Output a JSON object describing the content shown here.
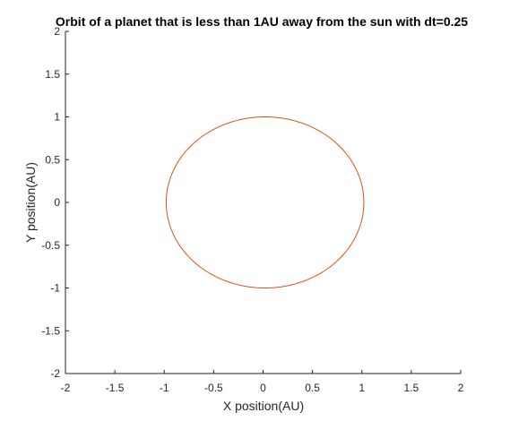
{
  "chart_data": {
    "type": "line",
    "title": "Orbit of a planet that is less than 1AU away from the sun with dt=0.25",
    "xlabel": "X position(AU)",
    "ylabel": "Y position(AU)",
    "xlim": [
      -2,
      2
    ],
    "ylim": [
      -2,
      2
    ],
    "x_ticks": [
      "-2",
      "-1.5",
      "-1",
      "-0.5",
      "0",
      "0.5",
      "1",
      "1.5",
      "2"
    ],
    "y_ticks": [
      "-2",
      "-1.5",
      "-1",
      "-0.5",
      "0",
      "0.5",
      "1",
      "1.5",
      "2"
    ],
    "grid": false,
    "series": [
      {
        "color": "#d95319",
        "shape": "ellipse",
        "center": [
          0.02,
          0.0
        ],
        "x_extent": [
          -0.99,
          1.01
        ],
        "y_extent": [
          -1.0,
          1.0
        ],
        "points": [
          [
            1.01,
            0.0
          ],
          [
            0.96,
            0.31
          ],
          [
            0.83,
            0.59
          ],
          [
            0.61,
            0.81
          ],
          [
            0.33,
            0.95
          ],
          [
            0.02,
            1.0
          ],
          [
            -0.29,
            0.95
          ],
          [
            -0.57,
            0.81
          ],
          [
            -0.79,
            0.59
          ],
          [
            -0.93,
            0.31
          ],
          [
            -0.99,
            0.0
          ],
          [
            -0.93,
            -0.31
          ],
          [
            -0.79,
            -0.59
          ],
          [
            -0.57,
            -0.81
          ],
          [
            -0.29,
            -0.95
          ],
          [
            0.02,
            -1.0
          ],
          [
            0.33,
            -0.95
          ],
          [
            0.61,
            -0.81
          ],
          [
            0.83,
            -0.59
          ],
          [
            0.96,
            -0.31
          ],
          [
            1.01,
            0.0
          ]
        ]
      }
    ]
  }
}
